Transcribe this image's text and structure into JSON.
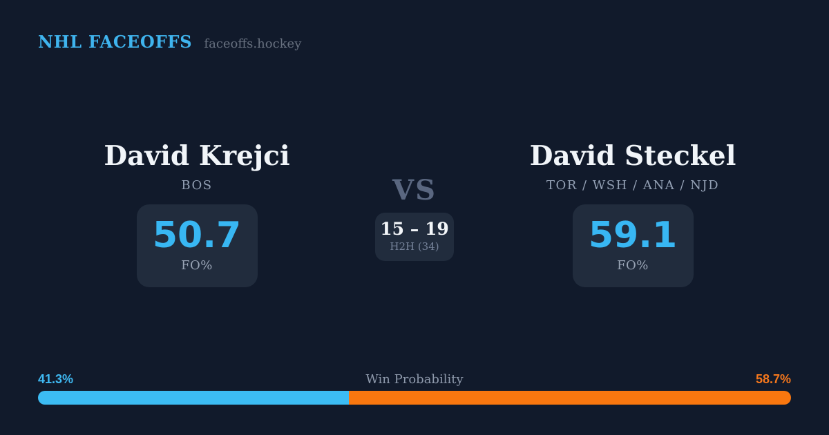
{
  "header": {
    "brand": "NHL FACEOFFS",
    "site": "faceoffs.hockey"
  },
  "matchup": {
    "left": {
      "name": "David Krejci",
      "teams": "BOS",
      "fo_value": "50.7",
      "fo_label": "FO%"
    },
    "versus": {
      "label": "VS",
      "h2h_score": "15 – 19",
      "h2h_label": "H2H (34)"
    },
    "right": {
      "name": "David Steckel",
      "teams": "TOR / WSH / ANA / NJD",
      "fo_value": "59.1",
      "fo_label": "FO%"
    }
  },
  "win_probability": {
    "title": "Win Probability",
    "left_label": "41.3%",
    "right_label": "58.7%",
    "left_value": 41.3,
    "right_value": 58.7
  },
  "colors": {
    "background": "#111a2b",
    "card": "#212c3d",
    "accent_blue": "#3bb8f3",
    "accent_orange": "#f9770f",
    "text_primary": "#f1f5f9",
    "text_muted": "#8e99ab"
  }
}
